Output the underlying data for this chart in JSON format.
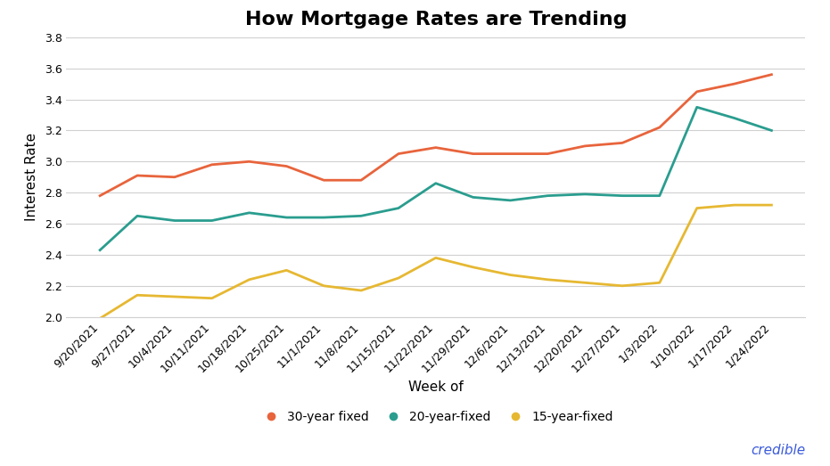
{
  "title": "How Mortgage Rates are Trending",
  "xlabel": "Week of",
  "ylabel": "Interest Rate",
  "xlabels": [
    "9/20/2021",
    "9/27/2021",
    "10/4/2021",
    "10/11/2021",
    "10/18/2021",
    "10/25/2021",
    "11/1/2021",
    "11/8/2021",
    "11/15/2021",
    "11/22/2021",
    "11/29/2021",
    "12/6/2021",
    "12/13/2021",
    "12/20/2021",
    "12/27/2021",
    "1/3/2022",
    "1/10/2022",
    "1/17/2022",
    "1/24/2022"
  ],
  "series_30yr": [
    2.78,
    2.91,
    2.9,
    2.98,
    3.0,
    2.97,
    2.88,
    2.88,
    3.05,
    3.09,
    3.05,
    3.05,
    3.05,
    3.1,
    3.12,
    3.22,
    3.45,
    3.5,
    3.56
  ],
  "series_20yr": [
    2.43,
    2.65,
    2.62,
    2.62,
    2.67,
    2.64,
    2.64,
    2.65,
    2.7,
    2.86,
    2.77,
    2.75,
    2.78,
    2.79,
    2.78,
    2.78,
    3.35,
    3.28,
    3.2
  ],
  "series_15yr": [
    1.99,
    2.14,
    2.13,
    2.12,
    2.24,
    2.3,
    2.2,
    2.17,
    2.25,
    2.38,
    2.32,
    2.27,
    2.24,
    2.22,
    2.2,
    2.22,
    2.7,
    2.72,
    2.72
  ],
  "color_30yr": "#E8643C",
  "color_20yr": "#2A9D8F",
  "color_15yr": "#E6B832",
  "legend_labels": [
    "30-year fixed",
    "20-year-fixed",
    "15-year-fixed"
  ],
  "ylim": [
    2.0,
    3.8
  ],
  "yticks": [
    2.0,
    2.2,
    2.4,
    2.6,
    2.8,
    3.0,
    3.2,
    3.4,
    3.6,
    3.8
  ],
  "background_color": "#ffffff",
  "grid_color": "#d0d0d0",
  "title_fontsize": 16,
  "axis_label_fontsize": 11,
  "tick_fontsize": 9,
  "legend_fontsize": 10,
  "line_width": 2.0,
  "credible_text": "credible",
  "credible_color": "#3B5BDB"
}
